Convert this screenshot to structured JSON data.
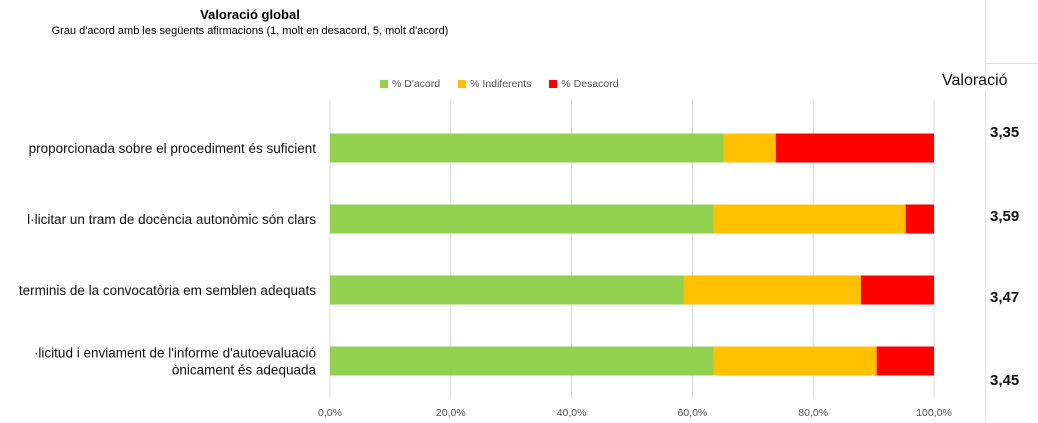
{
  "chart_data": {
    "type": "bar",
    "orientation": "horizontal",
    "stacked": true,
    "title": "Valoració global",
    "subtitle": "Grau d'acord amb les següents afirmacions (1, molt en desacord, 5, molt d'acord)",
    "categories": [
      "proporcionada sobre el procediment és suficient",
      "l·licitar un tram de docència autonòmic són clars",
      "terminis de la convocatòria em semblen adequats",
      "·licitud i enviament de l'informe d'autoevaluació|ònicament és adequada"
    ],
    "series": [
      {
        "name": "% D'acord",
        "color": "#92d050",
        "values": [
          65.2,
          63.5,
          58.6,
          63.5
        ]
      },
      {
        "name": "% Indiferents",
        "color": "#ffc000",
        "values": [
          8.6,
          31.8,
          29.3,
          27.0
        ]
      },
      {
        "name": "% Desacord",
        "color": "#ff0000",
        "values": [
          26.2,
          4.7,
          12.1,
          9.5
        ]
      }
    ],
    "xlim": [
      0,
      100
    ],
    "x_ticks": [
      "0,0%",
      "20,0%",
      "40,0%",
      "60,0%",
      "80,0%",
      "100,0%"
    ],
    "grid": true,
    "legend_position": "top"
  },
  "scores": {
    "header": "Valoració",
    "values": [
      "3,35",
      "3,59",
      "3,47",
      "3,45"
    ]
  }
}
